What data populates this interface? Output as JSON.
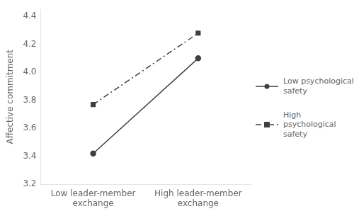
{
  "chart_data": {
    "type": "line",
    "categories": [
      "Low leader-member\nexchange",
      "High leader-member\nexchange"
    ],
    "series": [
      {
        "name": "Low psychological\nsafety",
        "color": "#404040",
        "values": [
          3.42,
          4.1
        ],
        "marker": "circle",
        "line_style": "solid"
      },
      {
        "name": "High psychological\nsafety",
        "color": "#404040",
        "values": [
          3.77,
          4.28
        ],
        "marker": "square",
        "line_style": "dashdot"
      }
    ],
    "ylabel": "Affective commitment",
    "ylim": [
      3.2,
      4.45
    ],
    "yticks": [
      3.2,
      3.4,
      3.6,
      3.8,
      {
        "value": 4.0,
        "label": "4.0"
      },
      4.2,
      4.4
    ],
    "grid": false,
    "legend": "right"
  }
}
